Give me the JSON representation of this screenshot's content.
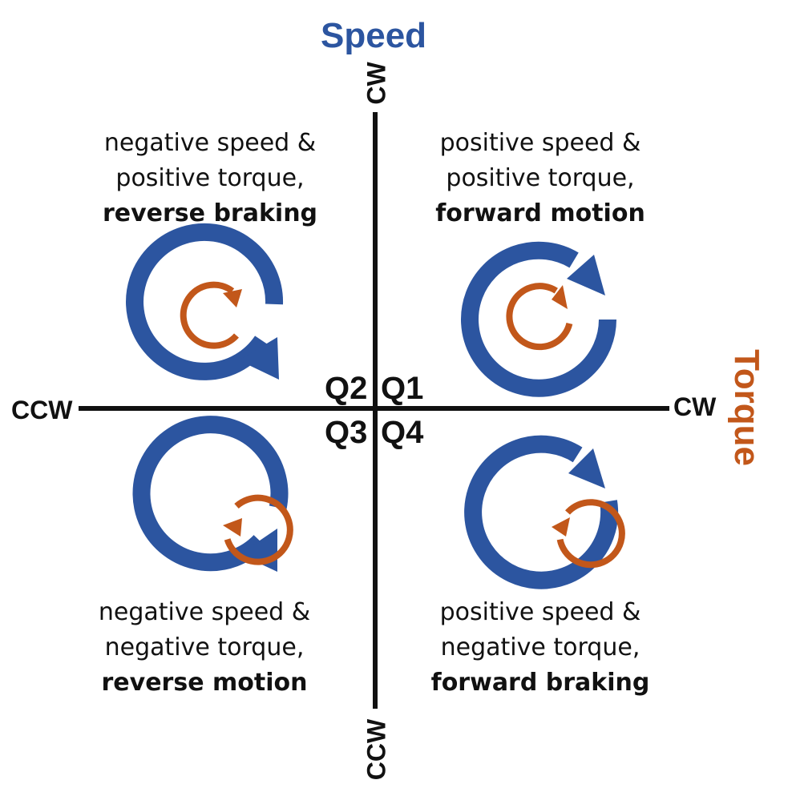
{
  "axes": {
    "speed": {
      "title": "Speed",
      "color": "#2c55a0",
      "top_label": "CW",
      "bottom_label": "CCW"
    },
    "torque": {
      "title": "Torque",
      "color": "#c2571a",
      "left_label": "CCW",
      "right_label": "CW"
    }
  },
  "quadrants": {
    "q1": {
      "label": "Q1",
      "line1": "positive speed &",
      "line2": "positive torque,",
      "mode": "forward motion",
      "speed_direction": "cw",
      "torque_direction": "cw"
    },
    "q2": {
      "label": "Q2",
      "line1": "negative speed &",
      "line2": "positive torque,",
      "mode": "reverse braking",
      "speed_direction": "ccw",
      "torque_direction": "cw"
    },
    "q3": {
      "label": "Q3",
      "line1": "negative speed &",
      "line2": "negative torque,",
      "mode": "reverse motion",
      "speed_direction": "ccw",
      "torque_direction": "ccw"
    },
    "q4": {
      "label": "Q4",
      "line1": "positive speed &",
      "line2": "negative torque,",
      "mode": "forward braking",
      "speed_direction": "cw",
      "torque_direction": "ccw"
    }
  },
  "colors": {
    "axis": "#111111",
    "speed_arrow": "#2c55a0",
    "torque_arrow": "#c2571a"
  },
  "icons": {
    "speed": "circular-arrow-icon",
    "torque": "circular-arrow-icon"
  }
}
